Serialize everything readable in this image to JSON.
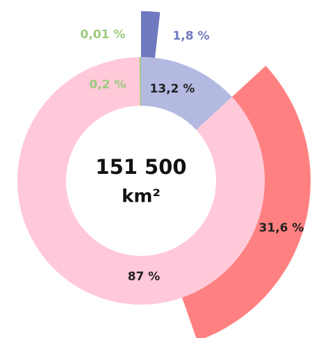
{
  "chart_data": {
    "type": "donut",
    "center_label": [
      "151 500",
      "km²"
    ],
    "segments": [
      {
        "value": 13.2,
        "label": "13,2 %",
        "color": "#b4b9e1",
        "extension": {
          "value": 1.8,
          "label": "1,8 %",
          "color": "#6f79bf"
        }
      },
      {
        "value": 87,
        "label": "87 %",
        "color": "#ffc9d9",
        "extension": {
          "value": 31.6,
          "label": "31,6 %",
          "color": "#ff8080"
        }
      },
      {
        "value": 0.2,
        "label": "0,2 %",
        "color": "#9ccb7c",
        "extension": {
          "value": 0.01,
          "label": "0,01 %",
          "color": "#9ccb7c"
        }
      }
    ]
  }
}
